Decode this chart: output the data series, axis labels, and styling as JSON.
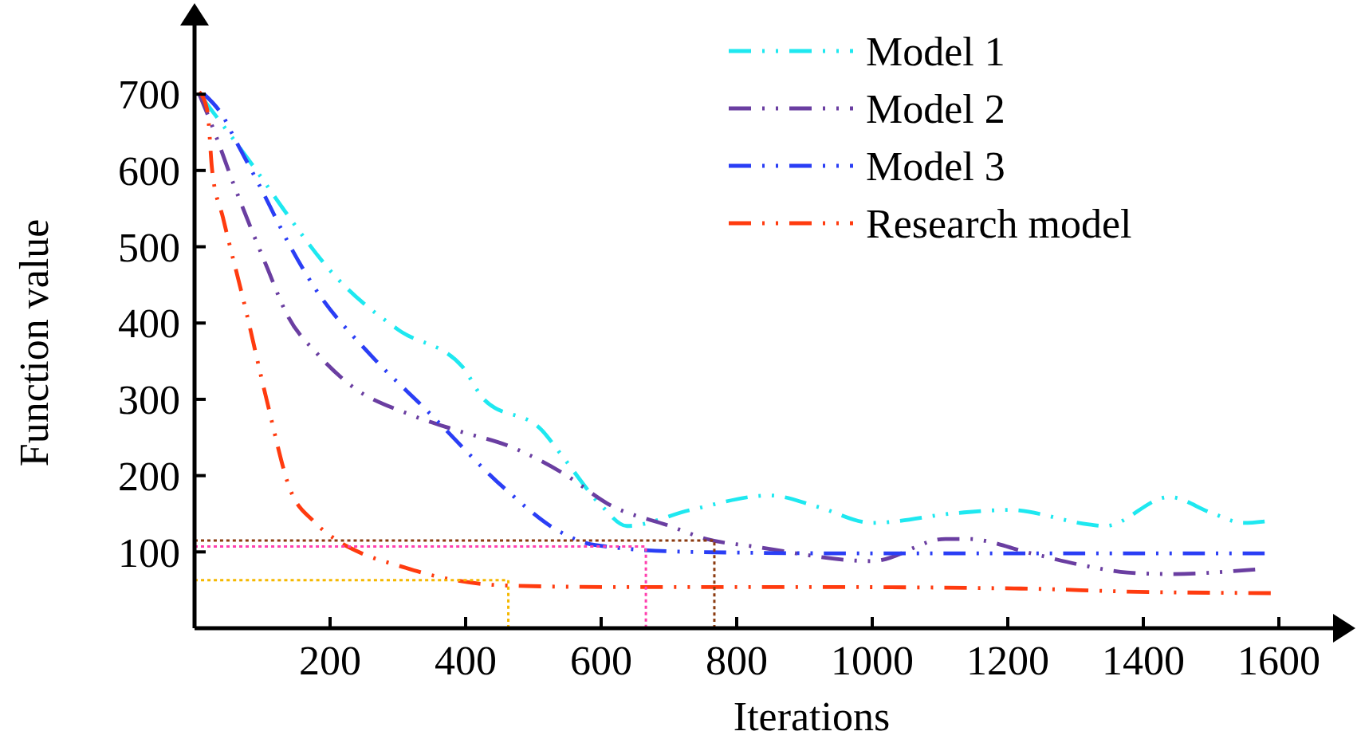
{
  "chart_data": {
    "type": "line",
    "xlabel": "Iterations",
    "ylabel": "Function value",
    "xlim": [
      0,
      1680
    ],
    "ylim": [
      0,
      790
    ],
    "xticks": [
      200,
      400,
      600,
      800,
      1000,
      1200,
      1400,
      1600
    ],
    "yticks": [
      100,
      200,
      300,
      400,
      500,
      600,
      700
    ],
    "grid": false,
    "legend": "top right",
    "line_style": "dashed",
    "series": [
      {
        "name": "Model 1",
        "color": "#1ee8f0",
        "x": [
          14,
          96,
          129,
          207,
          301,
          395,
          426,
          513,
          544,
          600,
          638,
          732,
          849,
          920,
          1000,
          1125,
          1202,
          1320,
          1344,
          1438,
          1501,
          1548,
          1579
        ],
        "values": [
          692,
          594,
          552,
          462,
          391,
          343,
          301,
          259,
          224,
          161,
          134,
          155,
          174,
          159,
          138,
          151,
          155,
          136,
          134,
          172,
          151,
          138,
          140
        ]
      },
      {
        "name": "Model 2",
        "color": "#6a3ea1",
        "x": [
          7,
          24,
          59,
          106,
          136,
          184,
          231,
          318,
          388,
          466,
          544,
          614,
          701,
          755,
          826,
          1000,
          1108,
          1141,
          1235,
          1313,
          1376,
          1438,
          1565
        ],
        "values": [
          700,
          663,
          579,
          475,
          412,
          357,
          318,
          280,
          259,
          238,
          203,
          161,
          134,
          117,
          107,
          88,
          117,
          117,
          98,
          82,
          73,
          71,
          77
        ]
      },
      {
        "name": "Model 3",
        "color": "#2a3ef5",
        "x": [
          14,
          42,
          59,
          96,
          144,
          176,
          261,
          341,
          459,
          536,
          591,
          732,
          1000,
          1300,
          1579
        ],
        "values": [
          700,
          671,
          642,
          580,
          496,
          448,
          357,
          287,
          182,
          128,
          109,
          100,
          98,
          98,
          98
        ]
      },
      {
        "name": "Research model",
        "color": "#ff3b0f",
        "x": [
          7,
          19,
          26,
          42,
          73,
          106,
          141,
          176,
          207,
          247,
          301,
          372,
          459,
          614,
          906,
          1219,
          1376,
          1588
        ],
        "values": [
          703,
          678,
          600,
          538,
          427,
          301,
          182,
          140,
          117,
          98,
          82,
          65,
          56,
          54,
          54,
          52,
          48,
          46
        ]
      },
      {
        "color": "#f5b800",
        "line_style": "dotted",
        "x": [
          0,
          463,
          463
        ],
        "values": [
          63,
          63,
          0
        ]
      },
      {
        "color": "#ff3fae",
        "line_style": "dotted",
        "x": [
          0,
          666,
          666
        ],
        "values": [
          107,
          107,
          0
        ]
      },
      {
        "color": "#8b3a0f",
        "line_style": "dotted",
        "x": [
          0,
          767,
          767
        ],
        "values": [
          115,
          115,
          0
        ]
      }
    ]
  }
}
